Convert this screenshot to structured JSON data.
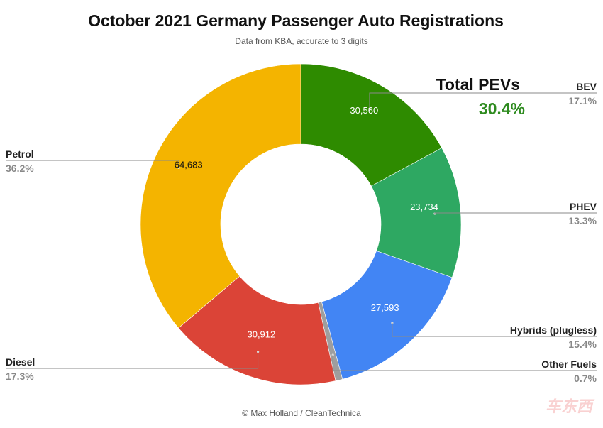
{
  "chart_data": {
    "type": "pie",
    "donut": true,
    "title": "October 2021 Germany Passenger Auto Registrations",
    "subtitle": "Data from KBA, accurate to 3 digits",
    "credit": "© Max Holland / CleanTechnica",
    "highlight": {
      "label": "Total PEVs",
      "value": "30.4%",
      "color": "#2e8b1f"
    },
    "slices": [
      {
        "name": "BEV",
        "value": 30560,
        "value_label": "30,560",
        "percent": "17.1%",
        "color": "#2e8b00",
        "label_color": "#ffffff",
        "side": "right"
      },
      {
        "name": "PHEV",
        "value": 23734,
        "value_label": "23,734",
        "percent": "13.3%",
        "color": "#2ea862",
        "label_color": "#ffffff",
        "side": "right"
      },
      {
        "name": "Hybrids (plugless)",
        "value": 27593,
        "value_label": "27,593",
        "percent": "15.4%",
        "color": "#4285f4",
        "label_color": "#ffffff",
        "side": "right"
      },
      {
        "name": "Other Fuels",
        "value": 1252,
        "value_label": "",
        "percent": "0.7%",
        "color": "#9e9e9e",
        "label_color": "#ffffff",
        "side": "right"
      },
      {
        "name": "Diesel",
        "value": 30912,
        "value_label": "30,912",
        "percent": "17.3%",
        "color": "#db4437",
        "label_color": "#ffffff",
        "side": "left"
      },
      {
        "name": "Petrol",
        "value": 64683,
        "value_label": "64,683",
        "percent": "36.2%",
        "color": "#f4b400",
        "label_color": "#111111",
        "side": "left"
      }
    ]
  },
  "watermark": "车东西"
}
